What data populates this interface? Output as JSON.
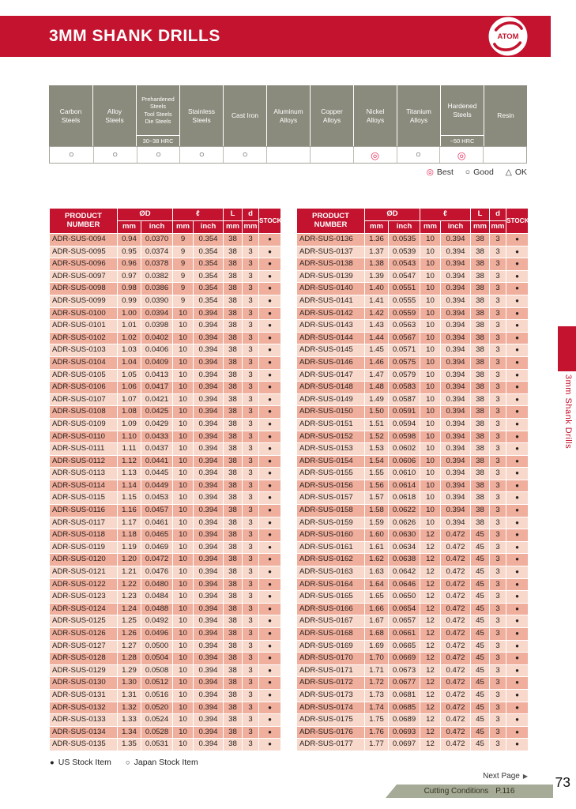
{
  "header": {
    "title": "3MM SHANK DRILLS",
    "logo_text": "ATOM"
  },
  "side_tab": {
    "label": "3mm Shank Drills"
  },
  "materials": {
    "symbol_map": {
      "best": "◎",
      "good": "○",
      "ok": "△"
    },
    "columns": [
      {
        "id": "carbon-steels",
        "label_lines": [
          "Carbon",
          "Steels"
        ],
        "sub": "",
        "mark": "good"
      },
      {
        "id": "alloy-steels",
        "label_lines": [
          "Alloy",
          "Steels"
        ],
        "sub": "",
        "mark": "good"
      },
      {
        "id": "prehardened-steels",
        "label_lines": [
          "Prehardened",
          "Steels",
          "Tool Steels",
          "Die Steels"
        ],
        "sub": "30~38 HRC",
        "mark": "good"
      },
      {
        "id": "stainless-steels",
        "label_lines": [
          "Stainless",
          "Steels"
        ],
        "sub": "",
        "mark": "good"
      },
      {
        "id": "cast-iron",
        "label_lines": [
          "Cast Iron"
        ],
        "sub": "",
        "mark": "good"
      },
      {
        "id": "aluminum-alloys",
        "label_lines": [
          "Aluminum",
          "Alloys"
        ],
        "sub": "",
        "mark": ""
      },
      {
        "id": "copper-alloys",
        "label_lines": [
          "Copper",
          "Alloys"
        ],
        "sub": "",
        "mark": ""
      },
      {
        "id": "nickel-alloys",
        "label_lines": [
          "Nickel",
          "Alloys"
        ],
        "sub": "",
        "mark": "best"
      },
      {
        "id": "titanium-alloys",
        "label_lines": [
          "Titanium",
          "Alloys"
        ],
        "sub": "",
        "mark": "good"
      },
      {
        "id": "hardened-steels",
        "label_lines": [
          "Hardened",
          "Steels"
        ],
        "sub": "~50 HRC",
        "mark": "best"
      },
      {
        "id": "resin",
        "label_lines": [
          "Resin"
        ],
        "sub": "",
        "mark": ""
      }
    ],
    "legend": [
      {
        "symbol": "◎",
        "label": "Best",
        "style": "best"
      },
      {
        "symbol": "○",
        "label": "Good",
        "style": "plain"
      },
      {
        "symbol": "△",
        "label": "OK",
        "style": "plain"
      }
    ]
  },
  "drill": {
    "headers": {
      "product": "PRODUCT NUMBER",
      "od": "ØD",
      "ell": "ℓ",
      "L": "L",
      "d": "d",
      "stock": "STOCK",
      "mm": "mm",
      "inch": "inch"
    },
    "left_rows": [
      [
        "ADR-SUS-0094",
        "0.94",
        "0.0370",
        "9",
        "0.354",
        "38",
        "3",
        "●"
      ],
      [
        "ADR-SUS-0095",
        "0.95",
        "0.0374",
        "9",
        "0.354",
        "38",
        "3",
        "●"
      ],
      [
        "ADR-SUS-0096",
        "0.96",
        "0.0378",
        "9",
        "0.354",
        "38",
        "3",
        "●"
      ],
      [
        "ADR-SUS-0097",
        "0.97",
        "0.0382",
        "9",
        "0.354",
        "38",
        "3",
        "●"
      ],
      [
        "ADR-SUS-0098",
        "0.98",
        "0.0386",
        "9",
        "0.354",
        "38",
        "3",
        "●"
      ],
      [
        "ADR-SUS-0099",
        "0.99",
        "0.0390",
        "9",
        "0.354",
        "38",
        "3",
        "●"
      ],
      [
        "ADR-SUS-0100",
        "1.00",
        "0.0394",
        "10",
        "0.394",
        "38",
        "3",
        "●"
      ],
      [
        "ADR-SUS-0101",
        "1.01",
        "0.0398",
        "10",
        "0.394",
        "38",
        "3",
        "●"
      ],
      [
        "ADR-SUS-0102",
        "1.02",
        "0.0402",
        "10",
        "0.394",
        "38",
        "3",
        "●"
      ],
      [
        "ADR-SUS-0103",
        "1.03",
        "0.0406",
        "10",
        "0.394",
        "38",
        "3",
        "●"
      ],
      [
        "ADR-SUS-0104",
        "1.04",
        "0.0409",
        "10",
        "0.394",
        "38",
        "3",
        "●"
      ],
      [
        "ADR-SUS-0105",
        "1.05",
        "0.0413",
        "10",
        "0.394",
        "38",
        "3",
        "●"
      ],
      [
        "ADR-SUS-0106",
        "1.06",
        "0.0417",
        "10",
        "0.394",
        "38",
        "3",
        "●"
      ],
      [
        "ADR-SUS-0107",
        "1.07",
        "0.0421",
        "10",
        "0.394",
        "38",
        "3",
        "●"
      ],
      [
        "ADR-SUS-0108",
        "1.08",
        "0.0425",
        "10",
        "0.394",
        "38",
        "3",
        "●"
      ],
      [
        "ADR-SUS-0109",
        "1.09",
        "0.0429",
        "10",
        "0.394",
        "38",
        "3",
        "●"
      ],
      [
        "ADR-SUS-0110",
        "1.10",
        "0.0433",
        "10",
        "0.394",
        "38",
        "3",
        "●"
      ],
      [
        "ADR-SUS-0111",
        "1.11",
        "0.0437",
        "10",
        "0.394",
        "38",
        "3",
        "●"
      ],
      [
        "ADR-SUS-0112",
        "1.12",
        "0.0441",
        "10",
        "0.394",
        "38",
        "3",
        "●"
      ],
      [
        "ADR-SUS-0113",
        "1.13",
        "0.0445",
        "10",
        "0.394",
        "38",
        "3",
        "●"
      ],
      [
        "ADR-SUS-0114",
        "1.14",
        "0.0449",
        "10",
        "0.394",
        "38",
        "3",
        "●"
      ],
      [
        "ADR-SUS-0115",
        "1.15",
        "0.0453",
        "10",
        "0.394",
        "38",
        "3",
        "●"
      ],
      [
        "ADR-SUS-0116",
        "1.16",
        "0.0457",
        "10",
        "0.394",
        "38",
        "3",
        "●"
      ],
      [
        "ADR-SUS-0117",
        "1.17",
        "0.0461",
        "10",
        "0.394",
        "38",
        "3",
        "●"
      ],
      [
        "ADR-SUS-0118",
        "1.18",
        "0.0465",
        "10",
        "0.394",
        "38",
        "3",
        "●"
      ],
      [
        "ADR-SUS-0119",
        "1.19",
        "0.0469",
        "10",
        "0.394",
        "38",
        "3",
        "●"
      ],
      [
        "ADR-SUS-0120",
        "1.20",
        "0.0472",
        "10",
        "0.394",
        "38",
        "3",
        "●"
      ],
      [
        "ADR-SUS-0121",
        "1.21",
        "0.0476",
        "10",
        "0.394",
        "38",
        "3",
        "●"
      ],
      [
        "ADR-SUS-0122",
        "1.22",
        "0.0480",
        "10",
        "0.394",
        "38",
        "3",
        "●"
      ],
      [
        "ADR-SUS-0123",
        "1.23",
        "0.0484",
        "10",
        "0.394",
        "38",
        "3",
        "●"
      ],
      [
        "ADR-SUS-0124",
        "1.24",
        "0.0488",
        "10",
        "0.394",
        "38",
        "3",
        "●"
      ],
      [
        "ADR-SUS-0125",
        "1.25",
        "0.0492",
        "10",
        "0.394",
        "38",
        "3",
        "●"
      ],
      [
        "ADR-SUS-0126",
        "1.26",
        "0.0496",
        "10",
        "0.394",
        "38",
        "3",
        "●"
      ],
      [
        "ADR-SUS-0127",
        "1.27",
        "0.0500",
        "10",
        "0.394",
        "38",
        "3",
        "●"
      ],
      [
        "ADR-SUS-0128",
        "1.28",
        "0.0504",
        "10",
        "0.394",
        "38",
        "3",
        "●"
      ],
      [
        "ADR-SUS-0129",
        "1.29",
        "0.0508",
        "10",
        "0.394",
        "38",
        "3",
        "●"
      ],
      [
        "ADR-SUS-0130",
        "1.30",
        "0.0512",
        "10",
        "0.394",
        "38",
        "3",
        "●"
      ],
      [
        "ADR-SUS-0131",
        "1.31",
        "0.0516",
        "10",
        "0.394",
        "38",
        "3",
        "●"
      ],
      [
        "ADR-SUS-0132",
        "1.32",
        "0.0520",
        "10",
        "0.394",
        "38",
        "3",
        "●"
      ],
      [
        "ADR-SUS-0133",
        "1.33",
        "0.0524",
        "10",
        "0.394",
        "38",
        "3",
        "●"
      ],
      [
        "ADR-SUS-0134",
        "1.34",
        "0.0528",
        "10",
        "0.394",
        "38",
        "3",
        "●"
      ],
      [
        "ADR-SUS-0135",
        "1.35",
        "0.0531",
        "10",
        "0.394",
        "38",
        "3",
        "●"
      ]
    ],
    "right_rows": [
      [
        "ADR-SUS-0136",
        "1.36",
        "0.0535",
        "10",
        "0.394",
        "38",
        "3",
        "●"
      ],
      [
        "ADR-SUS-0137",
        "1.37",
        "0.0539",
        "10",
        "0.394",
        "38",
        "3",
        "●"
      ],
      [
        "ADR-SUS-0138",
        "1.38",
        "0.0543",
        "10",
        "0.394",
        "38",
        "3",
        "●"
      ],
      [
        "ADR-SUS-0139",
        "1.39",
        "0.0547",
        "10",
        "0.394",
        "38",
        "3",
        "●"
      ],
      [
        "ADR-SUS-0140",
        "1.40",
        "0.0551",
        "10",
        "0.394",
        "38",
        "3",
        "●"
      ],
      [
        "ADR-SUS-0141",
        "1.41",
        "0.0555",
        "10",
        "0.394",
        "38",
        "3",
        "●"
      ],
      [
        "ADR-SUS-0142",
        "1.42",
        "0.0559",
        "10",
        "0.394",
        "38",
        "3",
        "●"
      ],
      [
        "ADR-SUS-0143",
        "1.43",
        "0.0563",
        "10",
        "0.394",
        "38",
        "3",
        "●"
      ],
      [
        "ADR-SUS-0144",
        "1.44",
        "0.0567",
        "10",
        "0.394",
        "38",
        "3",
        "●"
      ],
      [
        "ADR-SUS-0145",
        "1.45",
        "0.0571",
        "10",
        "0.394",
        "38",
        "3",
        "●"
      ],
      [
        "ADR-SUS-0146",
        "1.46",
        "0.0575",
        "10",
        "0.394",
        "38",
        "3",
        "●"
      ],
      [
        "ADR-SUS-0147",
        "1.47",
        "0.0579",
        "10",
        "0.394",
        "38",
        "3",
        "●"
      ],
      [
        "ADR-SUS-0148",
        "1.48",
        "0.0583",
        "10",
        "0.394",
        "38",
        "3",
        "●"
      ],
      [
        "ADR-SUS-0149",
        "1.49",
        "0.0587",
        "10",
        "0.394",
        "38",
        "3",
        "●"
      ],
      [
        "ADR-SUS-0150",
        "1.50",
        "0.0591",
        "10",
        "0.394",
        "38",
        "3",
        "●"
      ],
      [
        "ADR-SUS-0151",
        "1.51",
        "0.0594",
        "10",
        "0.394",
        "38",
        "3",
        "●"
      ],
      [
        "ADR-SUS-0152",
        "1.52",
        "0.0598",
        "10",
        "0.394",
        "38",
        "3",
        "●"
      ],
      [
        "ADR-SUS-0153",
        "1.53",
        "0.0602",
        "10",
        "0.394",
        "38",
        "3",
        "●"
      ],
      [
        "ADR-SUS-0154",
        "1.54",
        "0.0606",
        "10",
        "0.394",
        "38",
        "3",
        "●"
      ],
      [
        "ADR-SUS-0155",
        "1.55",
        "0.0610",
        "10",
        "0.394",
        "38",
        "3",
        "●"
      ],
      [
        "ADR-SUS-0156",
        "1.56",
        "0.0614",
        "10",
        "0.394",
        "38",
        "3",
        "●"
      ],
      [
        "ADR-SUS-0157",
        "1.57",
        "0.0618",
        "10",
        "0.394",
        "38",
        "3",
        "●"
      ],
      [
        "ADR-SUS-0158",
        "1.58",
        "0.0622",
        "10",
        "0.394",
        "38",
        "3",
        "●"
      ],
      [
        "ADR-SUS-0159",
        "1.59",
        "0.0626",
        "10",
        "0.394",
        "38",
        "3",
        "●"
      ],
      [
        "ADR-SUS-0160",
        "1.60",
        "0.0630",
        "12",
        "0.472",
        "45",
        "3",
        "●"
      ],
      [
        "ADR-SUS-0161",
        "1.61",
        "0.0634",
        "12",
        "0.472",
        "45",
        "3",
        "●"
      ],
      [
        "ADR-SUS-0162",
        "1.62",
        "0.0638",
        "12",
        "0.472",
        "45",
        "3",
        "●"
      ],
      [
        "ADR-SUS-0163",
        "1.63",
        "0.0642",
        "12",
        "0.472",
        "45",
        "3",
        "●"
      ],
      [
        "ADR-SUS-0164",
        "1.64",
        "0.0646",
        "12",
        "0.472",
        "45",
        "3",
        "●"
      ],
      [
        "ADR-SUS-0165",
        "1.65",
        "0.0650",
        "12",
        "0.472",
        "45",
        "3",
        "●"
      ],
      [
        "ADR-SUS-0166",
        "1.66",
        "0.0654",
        "12",
        "0.472",
        "45",
        "3",
        "●"
      ],
      [
        "ADR-SUS-0167",
        "1.67",
        "0.0657",
        "12",
        "0.472",
        "45",
        "3",
        "●"
      ],
      [
        "ADR-SUS-0168",
        "1.68",
        "0.0661",
        "12",
        "0.472",
        "45",
        "3",
        "●"
      ],
      [
        "ADR-SUS-0169",
        "1.69",
        "0.0665",
        "12",
        "0.472",
        "45",
        "3",
        "●"
      ],
      [
        "ADR-SUS-0170",
        "1.70",
        "0.0669",
        "12",
        "0.472",
        "45",
        "3",
        "●"
      ],
      [
        "ADR-SUS-0171",
        "1.71",
        "0.0673",
        "12",
        "0.472",
        "45",
        "3",
        "●"
      ],
      [
        "ADR-SUS-0172",
        "1.72",
        "0.0677",
        "12",
        "0.472",
        "45",
        "3",
        "●"
      ],
      [
        "ADR-SUS-0173",
        "1.73",
        "0.0681",
        "12",
        "0.472",
        "45",
        "3",
        "●"
      ],
      [
        "ADR-SUS-0174",
        "1.74",
        "0.0685",
        "12",
        "0.472",
        "45",
        "3",
        "●"
      ],
      [
        "ADR-SUS-0175",
        "1.75",
        "0.0689",
        "12",
        "0.472",
        "45",
        "3",
        "●"
      ],
      [
        "ADR-SUS-0176",
        "1.76",
        "0.0693",
        "12",
        "0.472",
        "45",
        "3",
        "●"
      ],
      [
        "ADR-SUS-0177",
        "1.77",
        "0.0697",
        "12",
        "0.472",
        "45",
        "3",
        "●"
      ]
    ]
  },
  "footer": {
    "stock_legend": [
      {
        "symbol": "●",
        "label": "US Stock Item"
      },
      {
        "symbol": "○",
        "label": "Japan Stock Item"
      }
    ],
    "next_page": "Next Page",
    "next_page_arrow": "▶",
    "cutting_conditions_label": "Cutting Conditions",
    "cutting_conditions_page": "P.116",
    "page_number": "73"
  }
}
